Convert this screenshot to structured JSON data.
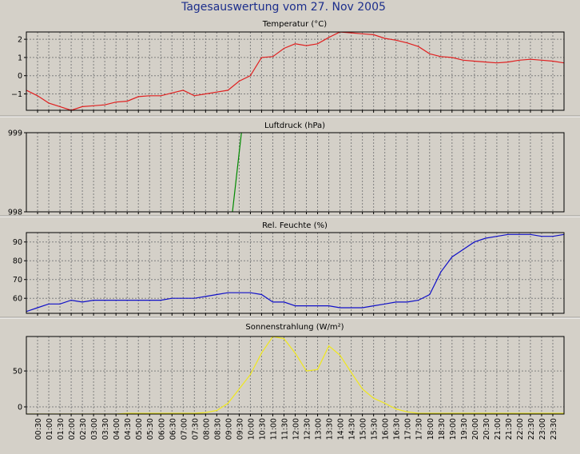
{
  "page_title": "Tagesauswertung vom 27. Nov 2005",
  "colors": {
    "background": "#d4d0c8",
    "plot_background": "#d4d0c8",
    "title": "#1c2e8c",
    "grid": "#7f7f7f",
    "temperature": "#e02020",
    "pressure": "#008a00",
    "humidity": "#1010c8",
    "radiation": "#f0e81c"
  },
  "time_labels": [
    "00:30",
    "01:00",
    "01:30",
    "02:00",
    "02:30",
    "03:00",
    "03:30",
    "04:00",
    "04:30",
    "05:00",
    "05:30",
    "06:00",
    "06:30",
    "07:00",
    "07:30",
    "08:00",
    "08:30",
    "09:00",
    "09:30",
    "10:00",
    "10:30",
    "11:00",
    "11:30",
    "12:00",
    "12:30",
    "13:00",
    "13:30",
    "14:00",
    "14:30",
    "15:00",
    "15:30",
    "16:00",
    "16:30",
    "17:00",
    "17:30",
    "18:00",
    "18:30",
    "19:00",
    "19:30",
    "20:00",
    "20:30",
    "21:00",
    "21:30",
    "22:00",
    "22:30",
    "23:00",
    "23:30"
  ],
  "chart_data": [
    {
      "type": "line",
      "title": "Temperatur (°C)",
      "x_range": [
        0,
        24
      ],
      "ylim": [
        -1.9,
        2.4
      ],
      "yticks": [
        -1,
        0,
        1,
        2
      ],
      "ytick_labels": [
        "−1",
        "0",
        "1",
        "2"
      ],
      "grid": true,
      "color_key": "temperature",
      "series": [
        {
          "x": [
            0,
            0.5,
            1,
            1.5,
            2,
            2.5,
            3,
            3.5,
            4,
            4.5,
            5,
            5.5,
            6,
            6.5,
            7,
            7.5,
            8,
            8.5,
            9,
            9.5,
            10,
            10.5,
            11,
            11.5,
            12,
            12.5,
            13,
            13.5,
            14,
            14.5,
            15,
            15.5,
            16,
            16.5,
            17,
            17.5,
            18,
            18.5,
            19,
            19.5,
            20,
            20.5,
            21,
            21.5,
            22,
            22.5,
            23,
            23.5,
            24
          ],
          "values": [
            -0.8,
            -1.1,
            -1.5,
            -1.7,
            -1.9,
            -1.7,
            -1.65,
            -1.6,
            -1.45,
            -1.4,
            -1.15,
            -1.1,
            -1.1,
            -0.95,
            -0.8,
            -1.1,
            -1.0,
            -0.9,
            -0.8,
            -0.3,
            0.0,
            1.0,
            1.05,
            1.5,
            1.75,
            1.65,
            1.75,
            2.1,
            2.4,
            2.35,
            2.3,
            2.25,
            2.05,
            1.95,
            1.8,
            1.6,
            1.2,
            1.05,
            1.0,
            0.85,
            0.8,
            0.75,
            0.7,
            0.75,
            0.85,
            0.9,
            0.85,
            0.8,
            0.7
          ]
        }
      ]
    },
    {
      "type": "line",
      "title": "Luftdruck (hPa)",
      "x_range": [
        0,
        24
      ],
      "ylim": [
        998,
        999
      ],
      "yticks": [
        998,
        999
      ],
      "ytick_labels": [
        "998",
        "999"
      ],
      "grid": true,
      "color_key": "pressure",
      "series": [
        {
          "x": [
            9.2,
            9.6
          ],
          "values": [
            998.0,
            999.0
          ]
        }
      ]
    },
    {
      "type": "line",
      "title": "Rel. Feuchte (%)",
      "x_range": [
        0,
        24
      ],
      "ylim": [
        52,
        95
      ],
      "yticks": [
        60,
        70,
        80,
        90
      ],
      "ytick_labels": [
        "60",
        "70",
        "80",
        "90"
      ],
      "grid": true,
      "color_key": "humidity",
      "series": [
        {
          "x": [
            0,
            0.5,
            1,
            1.5,
            2,
            2.5,
            3,
            3.5,
            4,
            4.5,
            5,
            5.5,
            6,
            6.5,
            7,
            7.5,
            8,
            8.5,
            9,
            9.5,
            10,
            10.5,
            11,
            11.5,
            12,
            12.5,
            13,
            13.5,
            14,
            14.5,
            15,
            15.5,
            16,
            16.5,
            17,
            17.5,
            18,
            18.5,
            19,
            19.5,
            20,
            20.5,
            21,
            21.5,
            22,
            22.5,
            23,
            23.5,
            24
          ],
          "values": [
            53,
            55,
            57,
            57,
            59,
            58,
            59,
            59,
            59,
            59,
            59,
            59,
            59,
            60,
            60,
            60,
            61,
            62,
            63,
            63,
            63,
            62,
            58,
            58,
            56,
            56,
            56,
            56,
            55,
            55,
            55,
            56,
            57,
            58,
            58,
            59,
            62,
            74,
            82,
            86,
            90,
            92,
            93,
            94,
            94,
            94,
            93,
            93,
            94
          ]
        }
      ]
    },
    {
      "type": "line",
      "title": "Sonnenstrahlung (W/m²)",
      "x_range": [
        0,
        24
      ],
      "ylim": [
        -10,
        98
      ],
      "yticks": [
        0,
        50
      ],
      "ytick_labels": [
        "0",
        "50"
      ],
      "grid": true,
      "color_key": "radiation",
      "series": [
        {
          "x": [
            0,
            4,
            4.5,
            5,
            7,
            7.5,
            8,
            8.5,
            9,
            9.5,
            10,
            10.5,
            11,
            11.5,
            12,
            12.5,
            13,
            13.5,
            14,
            14.5,
            15,
            15.5,
            16,
            16.5,
            17,
            17.5,
            18,
            20,
            22,
            24
          ],
          "values": [
            -10,
            -10,
            -9,
            -9,
            -9,
            -9,
            -8,
            -5,
            5,
            25,
            45,
            75,
            98,
            95,
            75,
            50,
            52,
            85,
            72,
            48,
            25,
            12,
            5,
            -3,
            -7,
            -9,
            -9,
            -9,
            -9,
            -9
          ]
        }
      ]
    }
  ]
}
